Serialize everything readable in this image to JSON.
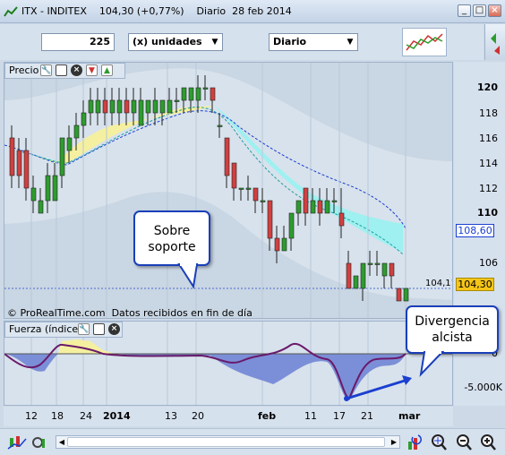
{
  "window": {
    "title": "ITX - INDITEX    104,30 (+0,77%)    Diario  28 feb 2014",
    "btn_min": "_",
    "btn_max": "□",
    "btn_close": "×"
  },
  "toolbar": {
    "units_value": "225",
    "units_label": "(x) unidades",
    "period_label": "Diario"
  },
  "price_panel": {
    "label": "Precio",
    "watermark": "© ProRealTime.com  Datos recibidos en fin de día",
    "last_price_line_label": "104,11"
  },
  "indicator_panel": {
    "label": "Fuerza (índice)"
  },
  "y_axis": {
    "price_ticks": [
      "120",
      "118",
      "116",
      "114",
      "112",
      "110",
      "108",
      "106",
      "104"
    ],
    "upper_band_label": "108,60",
    "last_price_label": "104,30",
    "ind_ticks": [
      "0",
      "-5.000K"
    ]
  },
  "x_axis": {
    "ticks": [
      "12",
      "18",
      "24",
      "2014",
      "13",
      "20",
      "feb",
      "11",
      "17",
      "21",
      "mar"
    ]
  },
  "annotations": {
    "support_line1": "Sobre",
    "support_line2": "soporte",
    "divergence_line1": "Divergencia",
    "divergence_line2": "alcista"
  },
  "colors": {
    "bull_candle": "#2e9c2e",
    "bear_candle": "#d04040",
    "ma_line": "#1a3fd0",
    "cloud_up": "#f5f0a0",
    "cloud_down": "#9ff0f0",
    "force_line": "#6a1a6a",
    "callout_border": "#1a3fb8"
  },
  "icons": [
    "wrench-icon",
    "window-icon",
    "close-icon",
    "down-arrow-icon",
    "up-arrow-icon",
    "zoom-in-icon",
    "zoom-out-icon",
    "magnify-icon"
  ]
}
